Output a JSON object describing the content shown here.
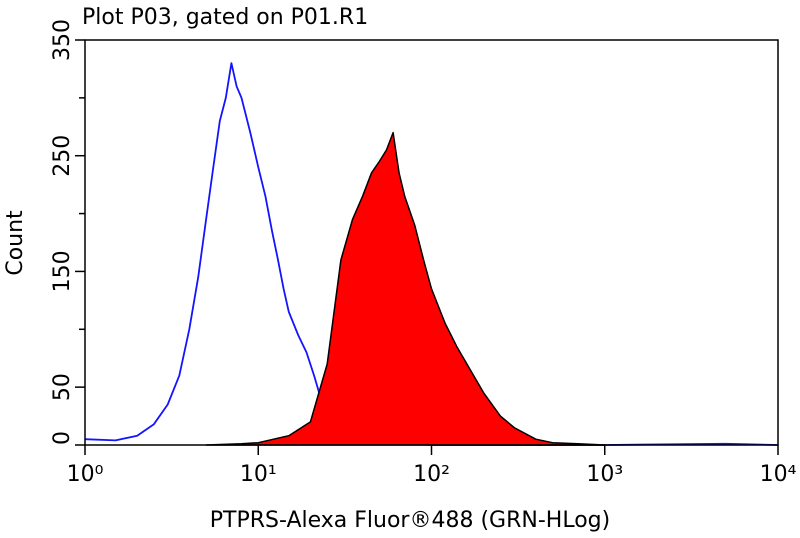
{
  "chart_data": {
    "type": "histogram-overlay",
    "title": "Plot P03, gated on P01.R1",
    "x_label": "PTPRS-Alexa Fluor®488 (GRN-HLog)",
    "y_label": "Count",
    "x_scale": "log",
    "xlim": [
      1,
      10000
    ],
    "xticks": [
      {
        "value": 1,
        "label": "10⁰"
      },
      {
        "value": 10,
        "label": "10¹"
      },
      {
        "value": 100,
        "label": "10²"
      },
      {
        "value": 1000,
        "label": "10³"
      },
      {
        "value": 10000,
        "label": "10⁴"
      }
    ],
    "ylim": [
      0,
      350
    ],
    "yticks": [
      0,
      50,
      150,
      250,
      350
    ],
    "yminor": [
      100,
      200,
      300
    ],
    "series": [
      {
        "color": "#1414ff",
        "fill": false,
        "x": [
          1,
          1.5,
          2,
          2.5,
          3,
          3.5,
          4,
          4.5,
          5,
          5.5,
          6,
          6.5,
          7,
          7.5,
          8,
          9,
          10,
          11,
          12,
          13,
          14,
          15,
          17,
          19,
          21,
          23,
          25,
          28,
          31,
          35,
          40,
          50,
          60,
          80,
          100,
          200,
          500,
          1000,
          5000,
          10000
        ],
        "values": [
          5,
          4,
          8,
          18,
          35,
          60,
          100,
          145,
          195,
          240,
          280,
          300,
          330,
          310,
          300,
          270,
          240,
          215,
          185,
          160,
          135,
          115,
          95,
          80,
          60,
          40,
          28,
          20,
          14,
          8,
          5,
          2,
          1,
          1,
          0,
          0,
          0,
          0,
          1,
          0
        ]
      },
      {
        "color": "#ff0000",
        "fill": true,
        "x": [
          5,
          8,
          10,
          15,
          20,
          25,
          30,
          35,
          40,
          45,
          50,
          55,
          60,
          65,
          70,
          80,
          90,
          100,
          120,
          140,
          160,
          200,
          250,
          300,
          400,
          500,
          700,
          1000
        ],
        "values": [
          0,
          1,
          2,
          8,
          20,
          70,
          160,
          195,
          215,
          235,
          245,
          255,
          270,
          235,
          215,
          190,
          160,
          135,
          105,
          85,
          70,
          45,
          25,
          15,
          5,
          2,
          1,
          0
        ]
      }
    ]
  }
}
